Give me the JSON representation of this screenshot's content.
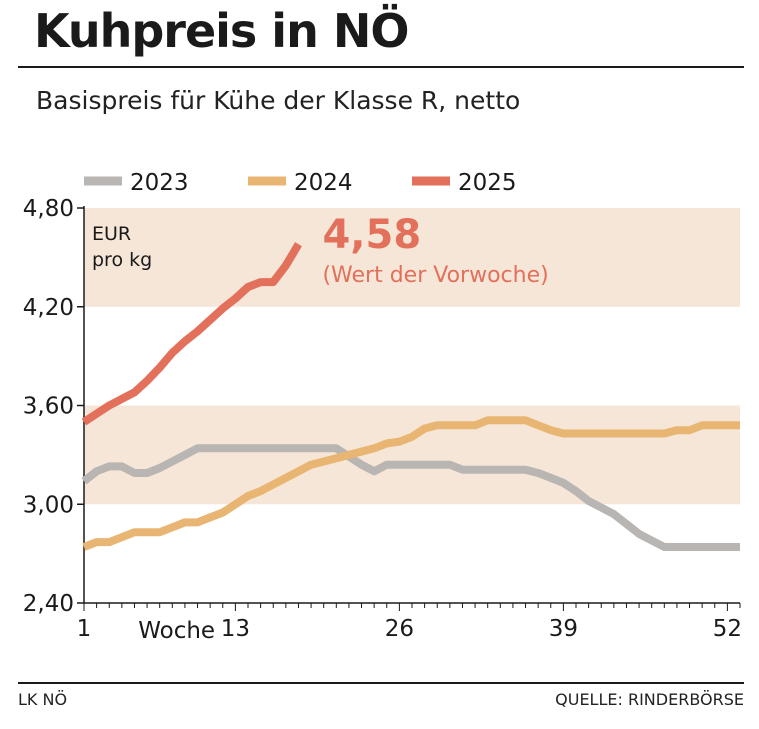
{
  "header": {
    "title": "Kuhpreis in NÖ",
    "subtitle": "Basispreis für Kühe der Klasse R, netto"
  },
  "footer": {
    "source_left": "LK NÖ",
    "source_right": "QUELLE: RINDERBÖRSE"
  },
  "chart_data": {
    "type": "line",
    "unit_label_line1": "EUR",
    "unit_label_line2": "pro kg",
    "xlabel": "Woche",
    "x_ticks": [
      1,
      13,
      26,
      39,
      52
    ],
    "x_tick_labels": [
      "1",
      "13",
      "26",
      "39",
      "52"
    ],
    "xlim": [
      1,
      53
    ],
    "ylim": [
      2.4,
      4.8
    ],
    "y_ticks": [
      2.4,
      3.0,
      3.6,
      4.2,
      4.8
    ],
    "y_tick_labels": [
      "2,40",
      "3,00",
      "3,60",
      "4,20",
      "4,80"
    ],
    "bands": [
      [
        3.0,
        3.6
      ],
      [
        4.2,
        4.8
      ]
    ],
    "band_color": "#f5e6d8",
    "legend_placement": "top",
    "highlight": {
      "value": "4,58",
      "note": "(Wert der Vorwoche)",
      "color": "#e2705b"
    },
    "series": [
      {
        "name": "2023",
        "color": "#b9b5b2",
        "x": [
          1,
          2,
          3,
          4,
          5,
          6,
          7,
          8,
          9,
          10,
          11,
          12,
          13,
          14,
          15,
          16,
          17,
          18,
          19,
          20,
          21,
          22,
          23,
          24,
          25,
          26,
          27,
          28,
          29,
          30,
          31,
          32,
          33,
          34,
          35,
          36,
          37,
          38,
          39,
          40,
          41,
          42,
          43,
          44,
          45,
          46,
          47,
          48,
          49,
          50,
          51,
          52,
          53
        ],
        "values": [
          3.14,
          3.2,
          3.23,
          3.23,
          3.19,
          3.19,
          3.22,
          3.26,
          3.3,
          3.34,
          3.34,
          3.34,
          3.34,
          3.34,
          3.34,
          3.34,
          3.34,
          3.34,
          3.34,
          3.34,
          3.34,
          3.29,
          3.24,
          3.2,
          3.24,
          3.24,
          3.24,
          3.24,
          3.24,
          3.24,
          3.21,
          3.21,
          3.21,
          3.21,
          3.21,
          3.21,
          3.19,
          3.16,
          3.13,
          3.08,
          3.02,
          2.98,
          2.94,
          2.88,
          2.82,
          2.78,
          2.74,
          2.74,
          2.74,
          2.74,
          2.74,
          2.74,
          2.74
        ]
      },
      {
        "name": "2024",
        "color": "#e9b572",
        "x": [
          1,
          2,
          3,
          4,
          5,
          6,
          7,
          8,
          9,
          10,
          11,
          12,
          13,
          14,
          15,
          16,
          17,
          18,
          19,
          20,
          21,
          22,
          23,
          24,
          25,
          26,
          27,
          28,
          29,
          30,
          31,
          32,
          33,
          34,
          35,
          36,
          37,
          38,
          39,
          40,
          41,
          42,
          43,
          44,
          45,
          46,
          47,
          48,
          49,
          50,
          51,
          52,
          53
        ],
        "values": [
          2.74,
          2.77,
          2.77,
          2.8,
          2.83,
          2.83,
          2.83,
          2.86,
          2.89,
          2.89,
          2.92,
          2.95,
          3.0,
          3.05,
          3.08,
          3.12,
          3.16,
          3.2,
          3.24,
          3.26,
          3.28,
          3.3,
          3.32,
          3.34,
          3.37,
          3.38,
          3.41,
          3.46,
          3.48,
          3.48,
          3.48,
          3.48,
          3.51,
          3.51,
          3.51,
          3.51,
          3.48,
          3.45,
          3.43,
          3.43,
          3.43,
          3.43,
          3.43,
          3.43,
          3.43,
          3.43,
          3.43,
          3.45,
          3.45,
          3.48,
          3.48,
          3.48,
          3.48
        ]
      },
      {
        "name": "2025",
        "color": "#e2705b",
        "x": [
          1,
          2,
          3,
          4,
          5,
          6,
          7,
          8,
          9,
          10,
          11,
          12,
          13,
          14,
          15,
          16,
          17,
          18
        ],
        "values": [
          3.5,
          3.55,
          3.6,
          3.64,
          3.68,
          3.75,
          3.83,
          3.92,
          3.99,
          4.05,
          4.12,
          4.19,
          4.25,
          4.32,
          4.35,
          4.35,
          4.45,
          4.58
        ]
      }
    ]
  }
}
